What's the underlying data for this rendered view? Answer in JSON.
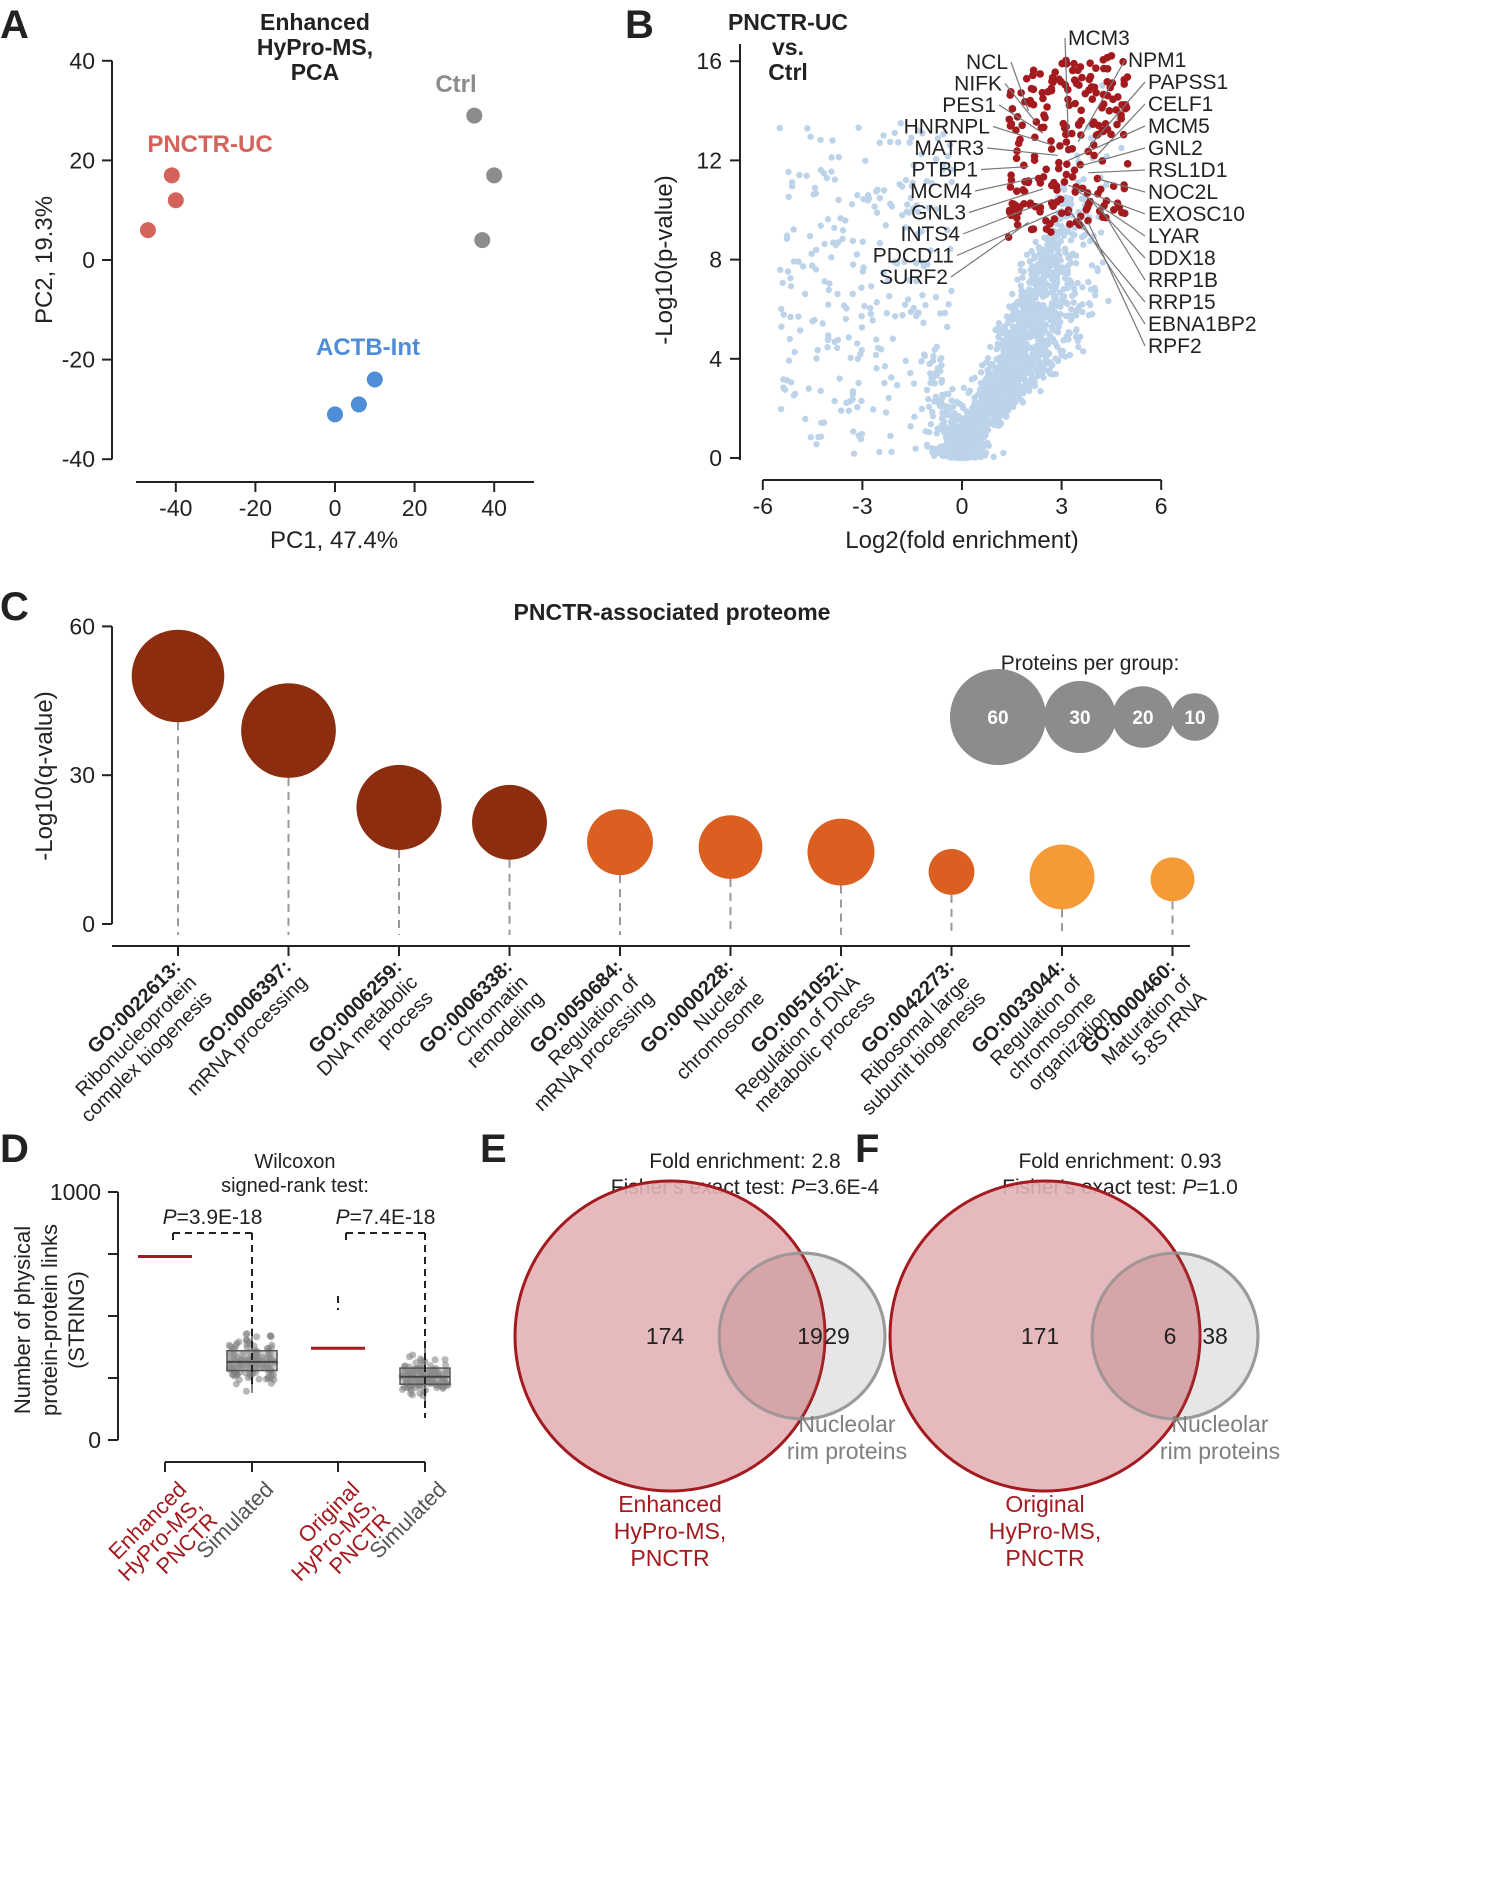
{
  "figure": {
    "colors": {
      "axis": "#222222",
      "text": "#222222",
      "red_pca": "#d4635c",
      "blue_pca": "#4f8ed6",
      "gray_pca": "#8c8c8c",
      "volcano_bg": "#bcd3ea",
      "volcano_hit": "#a31a1f",
      "dark_red": "#8c2d10",
      "orange": "#dc5f22",
      "light_orange": "#f59a36",
      "venn_fill": "#e3b2b6",
      "venn_edge": "#a31a1f",
      "venn_gray": "#9a9a9a",
      "venn_gray_fill": "#e6e6e6",
      "dash": "#9a9a9a"
    }
  },
  "chart_data": [
    {
      "id": "A",
      "panel_letter": "A",
      "type": "scatter",
      "title_lines": [
        "Enhanced",
        "HyPro-MS,",
        "PCA"
      ],
      "xlabel": "PC1, 47.4%",
      "ylabel": "PC2, 19.3%",
      "xlim": [
        -50,
        50
      ],
      "ylim": [
        -40,
        40
      ],
      "xticks": [
        -40,
        -20,
        0,
        20,
        40
      ],
      "yticks": [
        40,
        20,
        0,
        -20,
        -40
      ],
      "series": [
        {
          "name": "PNCTR-UC",
          "color_key": "red_pca",
          "points": [
            [
              -41,
              17
            ],
            [
              -40,
              12
            ],
            [
              -47,
              6
            ]
          ]
        },
        {
          "name": "Ctrl",
          "color_key": "gray_pca",
          "points": [
            [
              35,
              29
            ],
            [
              40,
              17
            ],
            [
              37,
              4
            ]
          ]
        },
        {
          "name": "ACTB-Int",
          "color_key": "blue_pca",
          "points": [
            [
              10,
              -24
            ],
            [
              6,
              -29
            ],
            [
              0,
              -31
            ]
          ]
        }
      ]
    },
    {
      "id": "B",
      "panel_letter": "B",
      "type": "scatter",
      "title_lines": [
        "PNCTR-UC",
        "vs.",
        "Ctrl"
      ],
      "xlabel": "Log2(fold enrichment)",
      "ylabel": "-Log10(p-value)",
      "xlim": [
        -6,
        6
      ],
      "ylim": [
        0,
        16.5
      ],
      "xticks": [
        -6,
        -3,
        0,
        3,
        6
      ],
      "yticks": [
        0,
        4,
        8,
        12,
        16
      ],
      "series": [
        {
          "name": "all proteins",
          "color_key": "volcano_bg",
          "points": "generated cloud"
        },
        {
          "name": "PNCTR-associated",
          "color_key": "volcano_hit",
          "points": "generated cluster"
        }
      ],
      "labels_right": [
        "MCM3",
        "NPM1",
        "PAPSS1",
        "CELF1",
        "MCM5",
        "GNL2",
        "RSL1D1",
        "NOC2L",
        "EXOSC10",
        "LYAR",
        "DDX18",
        "RRP1B",
        "RRP15",
        "EBNA1BP2",
        "RPF2"
      ],
      "labels_left": [
        "NCL",
        "NIFK",
        "PES1",
        "HNRNPL",
        "MATR3",
        "PTBP1",
        "MCM4",
        "GNL3",
        "INTS4",
        "PDCD11",
        "SURF2"
      ]
    },
    {
      "id": "C",
      "panel_letter": "C",
      "type": "bubble",
      "title": "PNCTR-associated proteome",
      "ylabel": "-Log10(q-value)",
      "ylim": [
        0,
        60
      ],
      "yticks": [
        0,
        30,
        60
      ],
      "legend_title": "Proteins per group:",
      "legend_sizes": [
        60,
        30,
        20,
        10
      ],
      "categories": [
        {
          "go": "GO:0022613:",
          "desc": [
            "Ribonucleoprotein",
            "complex biogenesis"
          ],
          "q": 50,
          "proteins": 55,
          "color_key": "dark_red"
        },
        {
          "go": "GO:0006397:",
          "desc": [
            "mRNA processing"
          ],
          "q": 39,
          "proteins": 58,
          "color_key": "dark_red"
        },
        {
          "go": "GO:0006259:",
          "desc": [
            "DNA metabolic",
            "process"
          ],
          "q": 23.5,
          "proteins": 45,
          "color_key": "dark_red"
        },
        {
          "go": "GO:0006338:",
          "desc": [
            "Chromatin",
            "remodeling"
          ],
          "q": 20.5,
          "proteins": 33,
          "color_key": "dark_red"
        },
        {
          "go": "GO:0050684:",
          "desc": [
            "Regulation of",
            "mRNA processing"
          ],
          "q": 16.5,
          "proteins": 24,
          "color_key": "orange"
        },
        {
          "go": "GO:0000228:",
          "desc": [
            "Nuclear",
            "chromosome"
          ],
          "q": 15.5,
          "proteins": 22,
          "color_key": "orange"
        },
        {
          "go": "GO:0051052:",
          "desc": [
            "Regulation of DNA",
            "metabolic process"
          ],
          "q": 14.5,
          "proteins": 25,
          "color_key": "orange"
        },
        {
          "go": "GO:0042273:",
          "desc": [
            "Ribosomal large",
            "subunit biogenesis"
          ],
          "q": 10.5,
          "proteins": 9,
          "color_key": "orange"
        },
        {
          "go": "GO:0033044:",
          "desc": [
            "Regulation of",
            "chromosome",
            "organization"
          ],
          "q": 9.5,
          "proteins": 23,
          "color_key": "light_orange"
        },
        {
          "go": "GO:0000460:",
          "desc": [
            "Maturation of",
            "5.8S rRNA"
          ],
          "q": 9,
          "proteins": 8,
          "color_key": "light_orange"
        }
      ]
    },
    {
      "id": "D",
      "panel_letter": "D",
      "type": "box",
      "test_title_lines": [
        "Wilcoxon",
        "signed-rank test:"
      ],
      "ylabel_lines": [
        "Number of physical",
        "protein-protein links",
        "(STRING)"
      ],
      "ylim": [
        0,
        1000
      ],
      "yticks": [
        0,
        1000
      ],
      "pvalues": [
        {
          "prefix": "P",
          "text": "=3.9E-18"
        },
        {
          "prefix": "P",
          "text": "=7.4E-18"
        }
      ],
      "groups": [
        {
          "label_lines": [
            "Enhanced",
            "HyPro-MS,",
            "PNCTR"
          ],
          "kind": "observed",
          "value": 740,
          "color_key": "venn_edge"
        },
        {
          "label_lines": [
            "Simulated"
          ],
          "kind": "simulated",
          "median": 315,
          "q1": 280,
          "q3": 360,
          "min": 190,
          "max": 450,
          "color_key": "gray_pca"
        },
        {
          "label_lines": [
            "Original",
            "HyPro-MS,",
            "PNCTR"
          ],
          "kind": "observed",
          "value": 370,
          "color_key": "venn_edge"
        },
        {
          "label_lines": [
            "Simulated"
          ],
          "kind": "simulated",
          "median": 255,
          "q1": 225,
          "q3": 290,
          "min": 150,
          "max": 390,
          "color_key": "gray_pca"
        }
      ]
    },
    {
      "id": "E",
      "panel_letter": "E",
      "type": "venn",
      "line1": "Fold enrichment: 2.8",
      "line2_prefix": "Fisher's exact test: ",
      "line2_p": "P",
      "line2_value": "=3.6E-4",
      "left_only": "174",
      "overlap": "19",
      "right_only": "29",
      "left_label_lines": [
        "Enhanced",
        "HyPro-MS,",
        "PNCTR"
      ],
      "right_label_lines": [
        "Nucleolar",
        "rim proteins"
      ]
    },
    {
      "id": "F",
      "panel_letter": "F",
      "type": "venn",
      "line1": "Fold enrichment: 0.93",
      "line2_prefix": "Fisher's exact test: ",
      "line2_p": "P",
      "line2_value": "=1.0",
      "left_only": "171",
      "overlap": "6",
      "right_only": "38",
      "left_label_lines": [
        "Original",
        "HyPro-MS,",
        "PNCTR"
      ],
      "right_label_lines": [
        "Nucleolar",
        "rim proteins"
      ]
    }
  ]
}
